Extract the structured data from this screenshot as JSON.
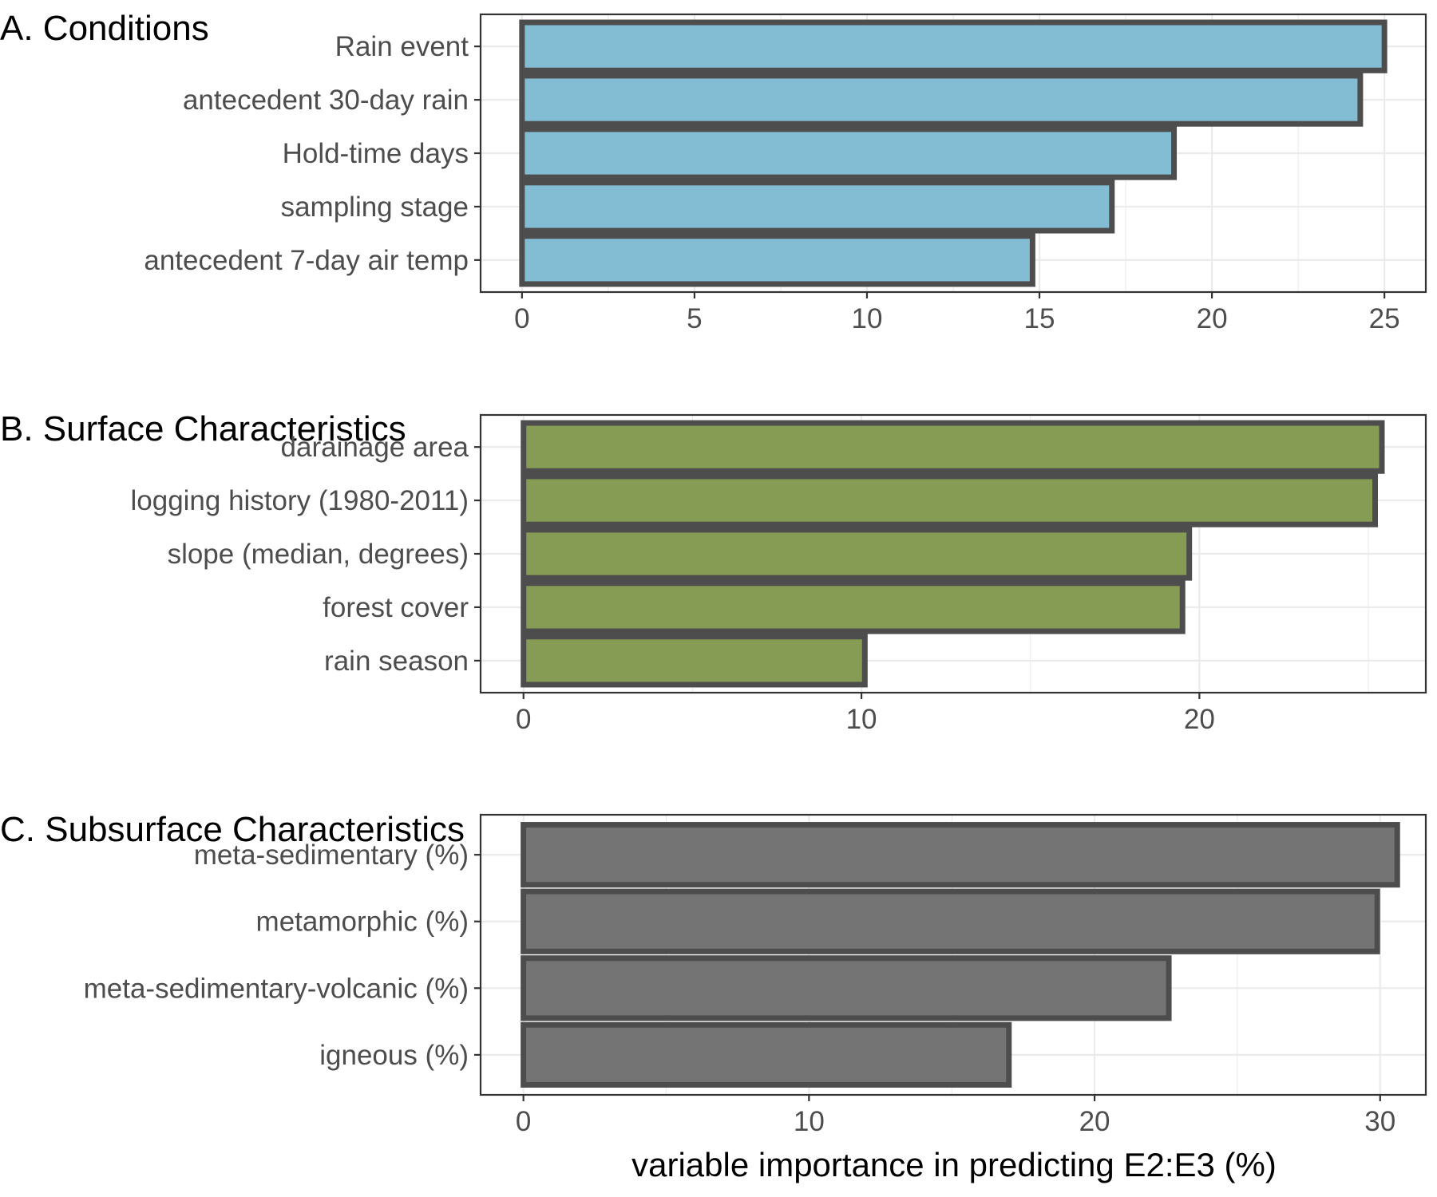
{
  "chart_data": [
    {
      "type": "bar",
      "orientation": "horizontal",
      "title": "A. Conditions",
      "categories": [
        "Rain event",
        "antecedent 30-day rain",
        "Hold-time days",
        "sampling stage",
        "antecedent 7-day air temp"
      ],
      "values": [
        25.0,
        24.3,
        18.9,
        17.1,
        14.8
      ],
      "xlim": [
        -1.2,
        26.2
      ],
      "xticks": [
        0,
        5,
        10,
        15,
        20,
        25
      ],
      "xlabel": "",
      "ylabel": "",
      "grid": true,
      "bar_color": "#7fbbd2",
      "bar_outline": "#4d4d4d"
    },
    {
      "type": "bar",
      "orientation": "horizontal",
      "title": "B. Surface Characteristics",
      "categories": [
        "darainage area",
        "logging history (1980-2011)",
        "slope (median, degrees)",
        "forest cover",
        "rain season"
      ],
      "values": [
        25.4,
        25.2,
        19.7,
        19.5,
        10.1
      ],
      "xlim": [
        -1.27,
        26.7
      ],
      "xticks": [
        0,
        10,
        20
      ],
      "xlabel": "",
      "ylabel": "",
      "grid": true,
      "bar_color": "#82994e",
      "bar_outline": "#4d4d4d"
    },
    {
      "type": "bar",
      "orientation": "horizontal",
      "title": "C. Subsurface Characteristics",
      "categories": [
        "meta-sedimentary (%)",
        "metamorphic (%)",
        "meta-sedimentary-volcanic (%)",
        "igneous (%)"
      ],
      "values": [
        30.6,
        29.9,
        22.6,
        17.0
      ],
      "xlim": [
        -1.5,
        31.6
      ],
      "xticks": [
        0,
        10,
        20,
        30
      ],
      "xlabel": "variable importance in predicting E2:E3 (%)",
      "ylabel": "",
      "grid": true,
      "bar_color": "#707070",
      "bar_outline": "#4d4d4d"
    }
  ]
}
